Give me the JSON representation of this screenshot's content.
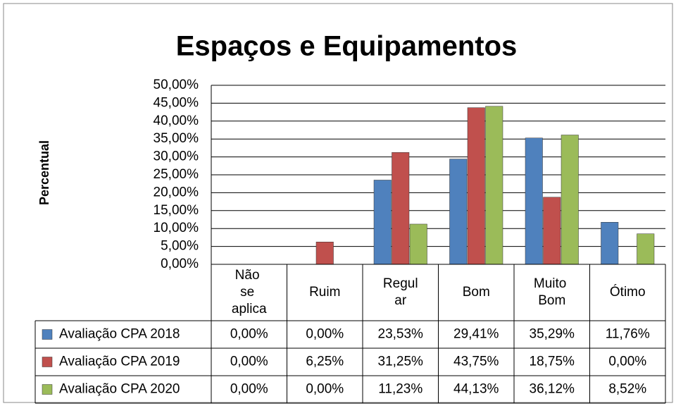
{
  "chart_data": {
    "type": "bar",
    "title": "Espaços e Equipamentos",
    "y_label": "Percentual",
    "categories": [
      "Não se aplica",
      "Ruim",
      "Regular",
      "Bom",
      "Muito Bom",
      "Ótimo"
    ],
    "series": [
      {
        "name": "Avaliação CPA 2018",
        "color": "#4f81bd",
        "values": [
          0,
          0,
          23.53,
          29.41,
          35.29,
          11.76
        ],
        "value_labels": [
          "0,00%",
          "0,00%",
          "23,53%",
          "29,41%",
          "35,29%",
          "11,76%"
        ]
      },
      {
        "name": "Avaliação CPA 2019",
        "color": "#c0504d",
        "values": [
          0,
          6.25,
          31.25,
          43.75,
          18.75,
          0
        ],
        "value_labels": [
          "0,00%",
          "6,25%",
          "31,25%",
          "43,75%",
          "18,75%",
          "0,00%"
        ]
      },
      {
        "name": "Avaliação CPA 2020",
        "color": "#9bbb59",
        "values": [
          0,
          0,
          11.23,
          44.13,
          36.12,
          8.52
        ],
        "value_labels": [
          "0,00%",
          "0,00%",
          "11,23%",
          "44,13%",
          "36,12%",
          "8,52%"
        ]
      }
    ],
    "ylim": [
      0,
      50
    ],
    "yticks": [
      {
        "value": 0,
        "label": "0,00%"
      },
      {
        "value": 5,
        "label": "5,00%"
      },
      {
        "value": 10,
        "label": "10,00%"
      },
      {
        "value": 15,
        "label": "15,00%"
      },
      {
        "value": 20,
        "label": "20,00%"
      },
      {
        "value": 25,
        "label": "25,00%"
      },
      {
        "value": 30,
        "label": "30,00%"
      },
      {
        "value": 35,
        "label": "35,00%"
      },
      {
        "value": 40,
        "label": "40,00%"
      },
      {
        "value": 45,
        "label": "45,00%"
      },
      {
        "value": 50,
        "label": "50,00%"
      }
    ],
    "grid": true
  }
}
